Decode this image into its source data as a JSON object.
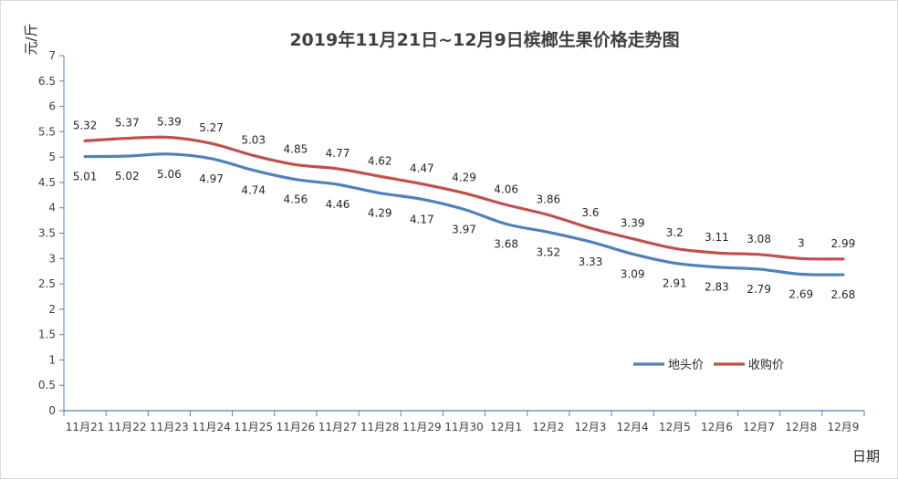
{
  "chart_data": {
    "type": "line",
    "title": "2019年11月21日~12月9日槟榔生果价格走势图",
    "ylabel": "元/斤",
    "xlabel": "日期",
    "ylim": [
      0,
      7
    ],
    "yticks": [
      "0",
      "0.5",
      "1",
      "1.5",
      "2",
      "2.5",
      "3",
      "3.5",
      "4",
      "4.5",
      "5",
      "5.5",
      "6",
      "6.5",
      "7"
    ],
    "categories": [
      "11月21",
      "11月22",
      "11月23",
      "11月24",
      "11月25",
      "11月26",
      "11月27",
      "11月28",
      "11月29",
      "11月30",
      "12月1",
      "12月2",
      "12月3",
      "12月4",
      "12月5",
      "12月6",
      "12月7",
      "12月8",
      "12月9"
    ],
    "legend_position": "bottom-right",
    "grid": false,
    "series": [
      {
        "name": "地头价",
        "color": "#4f81bd",
        "values": [
          5.01,
          5.02,
          5.06,
          4.97,
          4.74,
          4.56,
          4.46,
          4.29,
          4.17,
          3.97,
          3.68,
          3.52,
          3.33,
          3.09,
          2.91,
          2.83,
          2.79,
          2.69,
          2.68
        ],
        "labels": [
          "5.01",
          "5.02",
          "5.06",
          "4.97",
          "4.74",
          "4.56",
          "4.46",
          "4.29",
          "4.17",
          "3.97",
          "3.68",
          "3.52",
          "3.33",
          "3.09",
          "2.91",
          "2.83",
          "2.79",
          "2.69",
          "2.68"
        ]
      },
      {
        "name": "收购价",
        "color": "#c0504d",
        "values": [
          5.32,
          5.37,
          5.39,
          5.27,
          5.03,
          4.85,
          4.77,
          4.62,
          4.47,
          4.29,
          4.06,
          3.86,
          3.6,
          3.39,
          3.2,
          3.11,
          3.08,
          3.0,
          2.99
        ],
        "labels": [
          "5.32",
          "5.37",
          "5.39",
          "5.27",
          "5.03",
          "4.85",
          "4.77",
          "4.62",
          "4.47",
          "4.29",
          "4.06",
          "3.86",
          "3.6",
          "3.39",
          "3.2",
          "3.11",
          "3.08",
          "3",
          "2.99"
        ]
      }
    ]
  }
}
